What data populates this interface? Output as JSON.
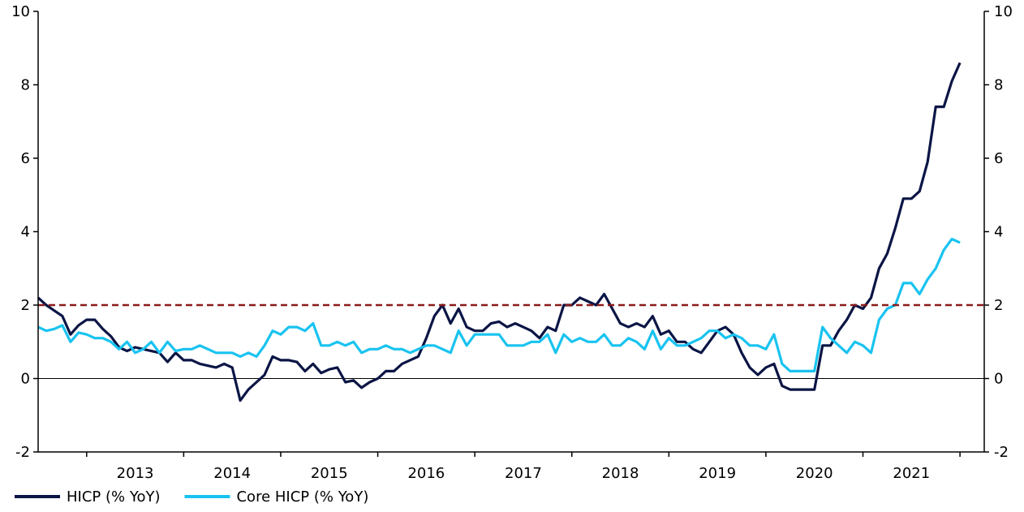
{
  "chart_data": {
    "type": "line",
    "title": "",
    "xlabel": "",
    "ylabel": "",
    "ylim": [
      -2,
      10
    ],
    "y_ticks_left": [
      "10",
      "8",
      "6",
      "4",
      "2",
      "0",
      "-2"
    ],
    "y_ticks_right": [
      "10",
      "8",
      "6",
      "4",
      "2",
      "0",
      "-2"
    ],
    "x_tick_labels": [
      "2013",
      "2014",
      "2015",
      "2016",
      "2017",
      "2018",
      "2019",
      "2020",
      "2021"
    ],
    "x_start": "2012-07",
    "x_end": "2022-04",
    "reference_line": {
      "value": 2,
      "style": "dashed",
      "color": "#8B1A1A"
    },
    "zero_line": true,
    "grid": false,
    "legend_position": "bottom-left",
    "series": [
      {
        "name": "HICP (% YoY)",
        "color": "#0B1545",
        "values": [
          2.2,
          2.0,
          1.85,
          1.7,
          1.2,
          1.45,
          1.6,
          1.6,
          1.35,
          1.15,
          0.85,
          0.75,
          0.85,
          0.8,
          0.75,
          0.7,
          0.45,
          0.7,
          0.5,
          0.5,
          0.4,
          0.35,
          0.3,
          0.4,
          0.3,
          -0.6,
          -0.3,
          -0.1,
          0.1,
          0.6,
          0.5,
          0.5,
          0.45,
          0.2,
          0.4,
          0.15,
          0.25,
          0.3,
          -0.1,
          -0.05,
          -0.25,
          -0.1,
          0.0,
          0.2,
          0.2,
          0.4,
          0.5,
          0.6,
          1.1,
          1.7,
          2.0,
          1.5,
          1.9,
          1.4,
          1.3,
          1.3,
          1.5,
          1.55,
          1.4,
          1.5,
          1.4,
          1.3,
          1.1,
          1.4,
          1.3,
          2.0,
          2.0,
          2.2,
          2.1,
          2.0,
          2.3,
          1.9,
          1.5,
          1.4,
          1.5,
          1.4,
          1.7,
          1.2,
          1.3,
          1.0,
          1.0,
          0.8,
          0.7,
          1.0,
          1.3,
          1.4,
          1.2,
          0.7,
          0.3,
          0.1,
          0.3,
          0.4,
          -0.2,
          -0.3,
          -0.3,
          -0.3,
          -0.3,
          0.9,
          0.9,
          1.3,
          1.6,
          2.0,
          1.9,
          2.2,
          3.0,
          3.4,
          4.1,
          4.9,
          4.9,
          5.1,
          5.9,
          7.4,
          7.4,
          8.1,
          8.6
        ]
      },
      {
        "name": "Core HICP (% YoY)",
        "color": "#19C3F0",
        "values": [
          1.4,
          1.3,
          1.35,
          1.45,
          1.0,
          1.25,
          1.2,
          1.1,
          1.1,
          1.0,
          0.8,
          1.0,
          0.7,
          0.8,
          1.0,
          0.7,
          1.0,
          0.75,
          0.8,
          0.8,
          0.9,
          0.8,
          0.7,
          0.7,
          0.7,
          0.6,
          0.7,
          0.6,
          0.9,
          1.3,
          1.2,
          1.4,
          1.4,
          1.3,
          1.5,
          0.9,
          0.9,
          1.0,
          0.9,
          1.0,
          0.7,
          0.8,
          0.8,
          0.9,
          0.8,
          0.8,
          0.7,
          0.8,
          0.9,
          0.9,
          0.8,
          0.7,
          1.3,
          0.9,
          1.2,
          1.2,
          1.2,
          1.2,
          0.9,
          0.9,
          0.9,
          1.0,
          1.0,
          1.2,
          0.7,
          1.2,
          1.0,
          1.1,
          1.0,
          1.0,
          1.2,
          0.9,
          0.9,
          1.1,
          1.0,
          0.8,
          1.3,
          0.8,
          1.1,
          0.9,
          0.9,
          1.0,
          1.1,
          1.3,
          1.3,
          1.1,
          1.2,
          1.1,
          0.9,
          0.9,
          0.8,
          1.2,
          0.4,
          0.2,
          0.2,
          0.2,
          0.2,
          1.4,
          1.1,
          0.9,
          0.7,
          1.0,
          0.9,
          0.7,
          1.6,
          1.9,
          2.0,
          2.6,
          2.6,
          2.3,
          2.7,
          3.0,
          3.5,
          3.8,
          3.7
        ]
      }
    ]
  }
}
